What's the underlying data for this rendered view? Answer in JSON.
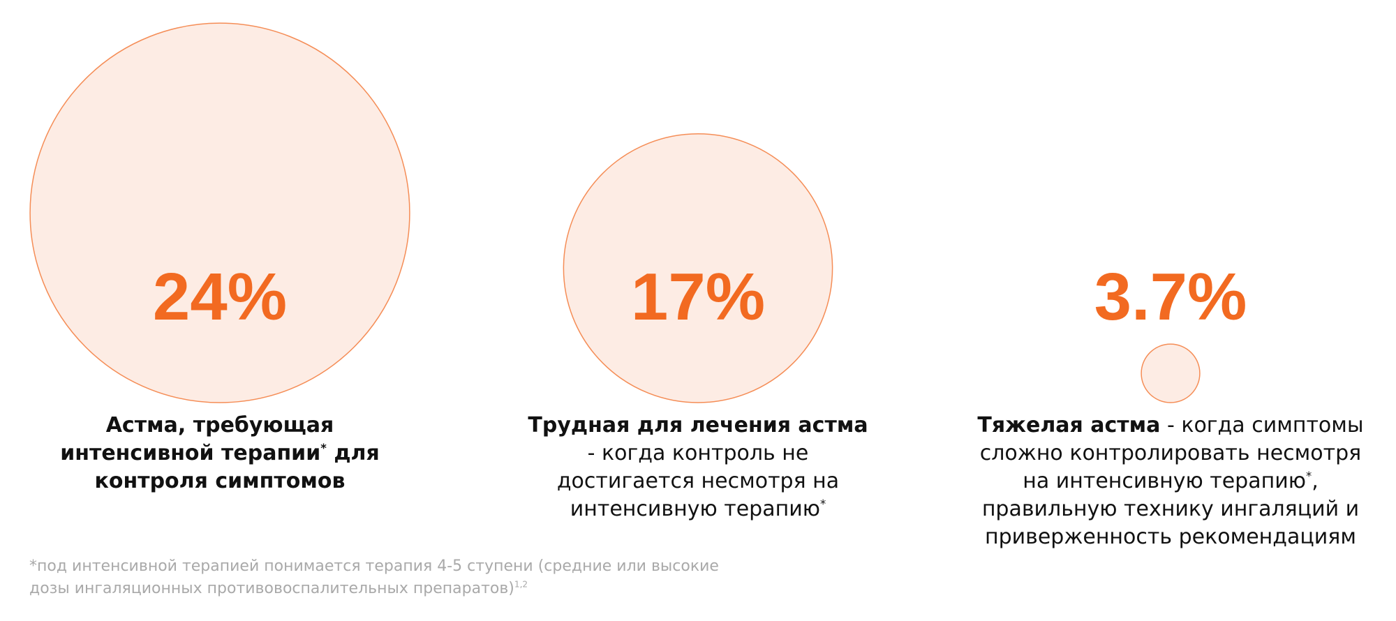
{
  "chart_data": {
    "type": "proportional-circles",
    "color": "#f26a21",
    "fill": "#fdece4",
    "values": [
      24,
      17,
      3.7
    ],
    "value_labels": [
      "24%",
      "17%",
      "3.7%"
    ],
    "descriptions": [
      [
        {
          "text": "Астма, требующая интенсивной терапии",
          "bold": true
        },
        {
          "text": "*",
          "bold": true,
          "sup": true
        },
        {
          "text": " для контроля симптомов",
          "bold": true
        }
      ],
      [
        {
          "text": "Трудная для лечения астма",
          "bold": true
        },
        {
          "text": " - когда контроль не достигается несмотря на интенсивную терапию"
        },
        {
          "text": "*",
          "sup": true
        }
      ],
      [
        {
          "text": "Тяжелая астма",
          "bold": true
        },
        {
          "text": " - когда симптомы сложно контролировать несмотря на интенсивную терапию"
        },
        {
          "text": "*",
          "sup": true
        },
        {
          "text": ", правильную технику ингаляций и приверженность рекомендациям"
        }
      ]
    ],
    "footnote": [
      {
        "text": "*под интенсивной терапией понимается терапия 4-5 ступени (средние или высокие дозы ингаляционных противовоспалительных препаратов)"
      },
      {
        "text": "1,2",
        "sup": true
      }
    ]
  }
}
